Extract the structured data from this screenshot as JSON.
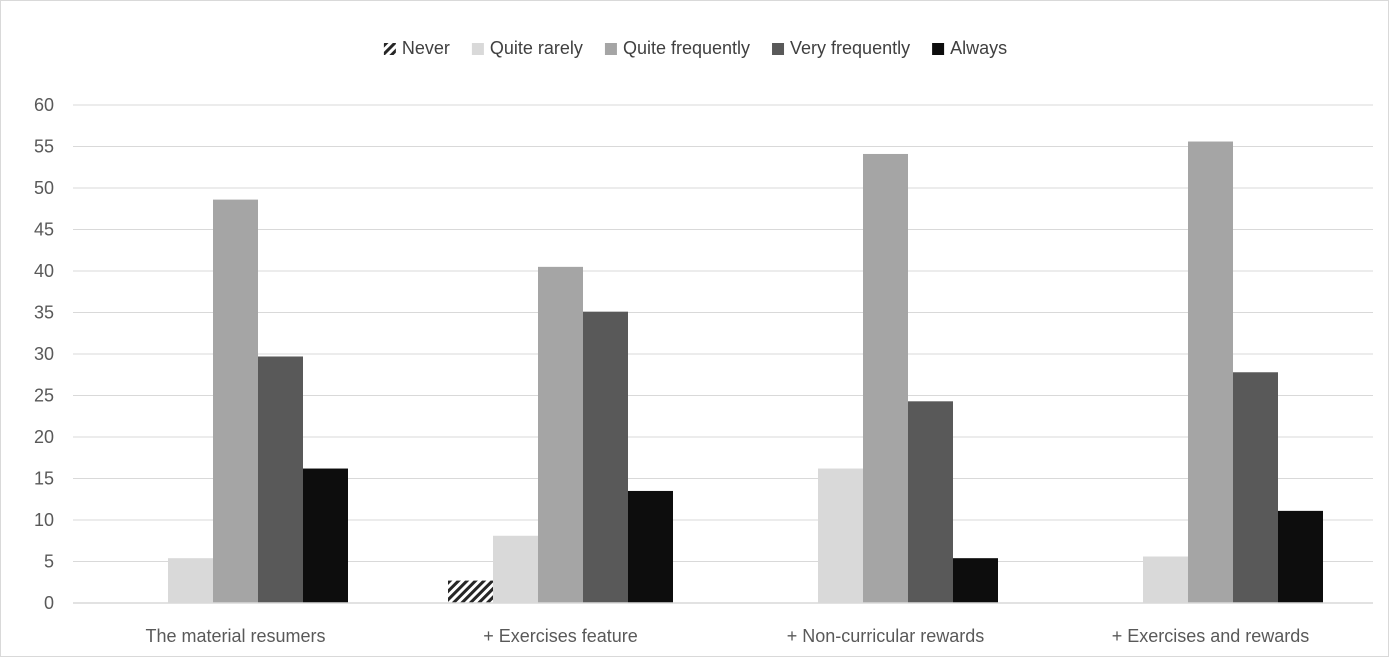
{
  "chart_data": {
    "type": "bar",
    "title": "",
    "xlabel": "",
    "ylabel": "",
    "ylim": [
      0,
      60
    ],
    "y_ticks": [
      0,
      5,
      10,
      15,
      20,
      25,
      30,
      35,
      40,
      45,
      50,
      55,
      60
    ],
    "grid": true,
    "legend_position": "top",
    "categories": [
      "The material resumers",
      "+ Exercises feature",
      "+ Non-curricular rewards",
      "+ Exercises and rewards"
    ],
    "series": [
      {
        "name": "Never",
        "values": [
          0,
          2.7,
          0,
          0
        ],
        "color": "#262626",
        "pattern": "hatch"
      },
      {
        "name": "Quite rarely",
        "values": [
          5.4,
          8.1,
          16.2,
          5.6
        ],
        "color": "#d9d9d9"
      },
      {
        "name": "Quite frequently",
        "values": [
          48.6,
          40.5,
          54.1,
          55.6
        ],
        "color": "#a5a5a5"
      },
      {
        "name": "Very frequently",
        "values": [
          29.7,
          35.1,
          24.3,
          27.8
        ],
        "color": "#595959"
      },
      {
        "name": "Always",
        "values": [
          16.2,
          13.5,
          5.4,
          11.1
        ],
        "color": "#0d0d0d"
      }
    ]
  }
}
